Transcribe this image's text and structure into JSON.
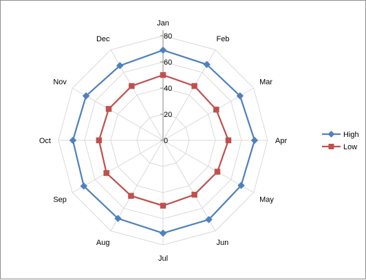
{
  "chart_data": {
    "type": "radar",
    "categories": [
      "Jan",
      "Feb",
      "Mar",
      "Apr",
      "May",
      "Jun",
      "Jul",
      "Aug",
      "Sep",
      "Oct",
      "Nov",
      "Dec"
    ],
    "series": [
      {
        "name": "High",
        "values": [
          69,
          67,
          68,
          70,
          69,
          70,
          71,
          69,
          70,
          69,
          68,
          66
        ],
        "color": "#4F81BD",
        "marker": "diamond"
      },
      {
        "name": "Low",
        "values": [
          50,
          48,
          47,
          50,
          48,
          48,
          50,
          49,
          50,
          49,
          48,
          48
        ],
        "color": "#C0504D",
        "marker": "square"
      }
    ],
    "rlim": [
      0,
      80
    ],
    "rticks": [
      0,
      20,
      40,
      60,
      80
    ],
    "grid": true,
    "legend_position": "right"
  }
}
